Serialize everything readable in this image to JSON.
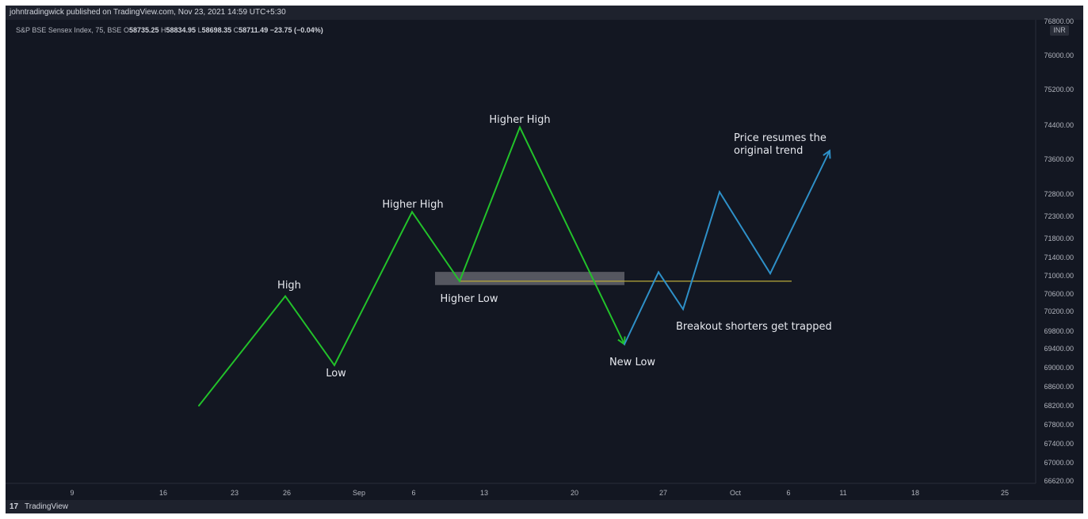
{
  "header": {
    "published": "johntradingwick published on TradingView.com, Nov 23, 2021 14:59 UTC+5:30"
  },
  "legend": {
    "symbol": "S&P BSE Sensex Index, 75, BSE",
    "open_prefix": "O",
    "open": "58735.25",
    "high_prefix": "H",
    "high": "58834.95",
    "low_prefix": "L",
    "low": "58698.35",
    "close_prefix": "C",
    "close": "58711.49",
    "change": "−23.75 (−0.04%)"
  },
  "footer": {
    "brand_logo": "17",
    "brand_name": "TradingView"
  },
  "colors": {
    "background": "#131722",
    "uptrend": "#22c22a",
    "new_trend": "#2e90c8",
    "level_line": "#b9a93a",
    "zone": "#6c6e75"
  },
  "chart_data": {
    "type": "line",
    "currency_label": "INR",
    "top_label_partial": "76800.00",
    "yticks": [
      "76000.00",
      "75200.00",
      "74400.00",
      "73600.00",
      "72800.00",
      "72300.00",
      "71800.00",
      "71400.00",
      "71000.00",
      "70600.00",
      "70200.00",
      "69800.00",
      "69400.00",
      "69000.00",
      "68600.00",
      "68200.00",
      "67800.00",
      "67400.00",
      "67000.00",
      "66620.00"
    ],
    "xticks": [
      "9",
      "16",
      "23",
      "26",
      "Sep",
      "6",
      "13",
      "20",
      "27",
      "Oct",
      "6",
      "11",
      "18",
      "25"
    ],
    "series": [
      {
        "color": "#22c22a",
        "points": [
          {
            "x": "Aug 19",
            "y": 68200
          },
          {
            "x": "Aug 26",
            "y": 70550
          },
          {
            "x": "Aug 30",
            "y": 69050
          },
          {
            "x": "Sep 6",
            "y": 72400
          },
          {
            "x": "Sep 10",
            "y": 70880
          },
          {
            "x": "Sep 15",
            "y": 74350
          },
          {
            "x": "Sep 24",
            "y": 69500
          }
        ]
      },
      {
        "color": "#2e90c8",
        "points": [
          {
            "x": "Sep 24",
            "y": 69500
          },
          {
            "x": "Sep 27",
            "y": 71080
          },
          {
            "x": "Sep 29",
            "y": 70250
          },
          {
            "x": "Sep 30",
            "y": 72850
          },
          {
            "x": "Oct 4",
            "y": 71050
          },
          {
            "x": "Oct 10",
            "y": 73800
          }
        ]
      }
    ],
    "level": {
      "y": 70880,
      "from": "Sep 10",
      "to": "Oct 6"
    },
    "zone": {
      "y_top": 71050,
      "y_bottom": 70830,
      "from": "Sep 8",
      "to": "Sep 24"
    },
    "annotations": [
      {
        "text": "High"
      },
      {
        "text": "Low"
      },
      {
        "text": "Higher High"
      },
      {
        "text": "Higher Low"
      },
      {
        "text": "Higher High"
      },
      {
        "text": "New Low"
      },
      {
        "text": "Breakout shorters get trapped"
      },
      {
        "text": "Price resumes the"
      },
      {
        "text": "original trend"
      }
    ]
  }
}
